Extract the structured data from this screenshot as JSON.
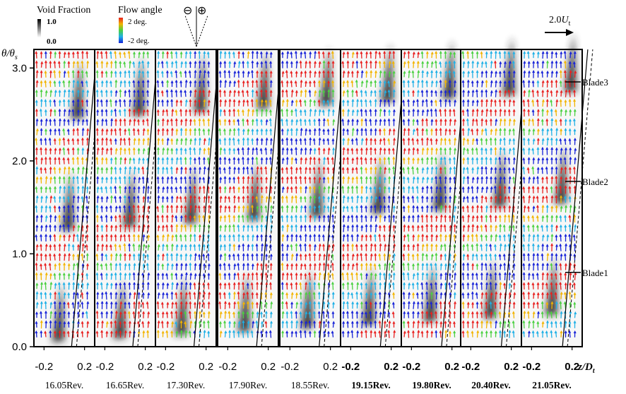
{
  "legend": {
    "void_fraction": {
      "title": "Void Fraction",
      "max_label": "1.0",
      "min_label": "0.0"
    },
    "flow_angle": {
      "title": "Flow angle",
      "max_label": "2 deg.",
      "min_label": "-2 deg."
    },
    "rotation_symbols": [
      "⊖",
      "⊕"
    ],
    "reference_vector": {
      "magnitude": "2.0",
      "symbol": "U",
      "subscript": "t"
    }
  },
  "colors": {
    "scale_high": "#e8201f",
    "scale_mid_high": "#f2b400",
    "scale_mid": "#4ad040",
    "scale_mid_low": "#1fb0e6",
    "scale_low": "#1622d8",
    "cavity": "#2b2b2b"
  },
  "chart_data": {
    "type": "vector-field-panels",
    "ylabel": "θ/θ",
    "ylabel_sub": "s",
    "xlabel": "z/D",
    "xlabel_sub": "t",
    "yticks": [
      "0.0",
      "1.0",
      "2.0",
      "3.0"
    ],
    "ytick_values": [
      0.0,
      1.0,
      2.0,
      3.0
    ],
    "ylim": [
      0.0,
      3.2
    ],
    "xtick_labels": [
      "-0.2",
      "0.2"
    ],
    "xtick_values": [
      -0.2,
      0.2
    ],
    "xlim": [
      -0.3,
      0.3
    ],
    "blade_labels": [
      {
        "label": "Blade3",
        "theta": 2.85
      },
      {
        "label": "Blade2",
        "theta": 1.78
      },
      {
        "label": "Blade1",
        "theta": 0.8
      }
    ],
    "panels": [
      {
        "label": "16.05Rev.",
        "bold": false,
        "offset": 0.0
      },
      {
        "label": "16.65Rev.",
        "bold": false,
        "offset": 0.06
      },
      {
        "label": "17.30Rev.",
        "bold": false,
        "offset": 0.12
      },
      {
        "label": "17.90Rev.",
        "bold": false,
        "offset": 0.18
      },
      {
        "label": "18.55Rev.",
        "bold": false,
        "offset": 0.24
      },
      {
        "label": "19.15Rev.",
        "bold": true,
        "offset": 0.3
      },
      {
        "label": "19.80Rev.",
        "bold": true,
        "offset": 0.36
      },
      {
        "label": "20.40Rev.",
        "bold": true,
        "offset": 0.42
      },
      {
        "label": "21.05Rev.",
        "bold": true,
        "offset": 0.48
      }
    ]
  }
}
